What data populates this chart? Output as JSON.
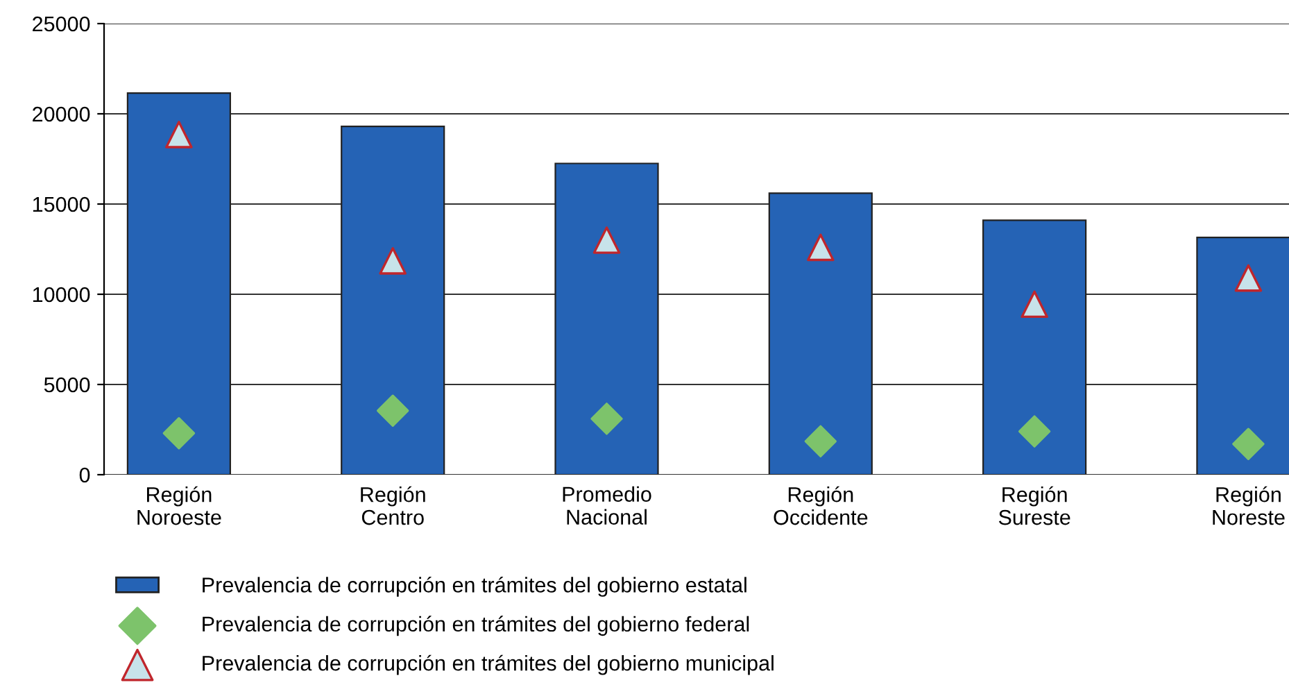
{
  "chart_data": {
    "type": "bar",
    "categories": [
      "Región\nNoroeste",
      "Región\nCentro",
      "Promedio\nNacional",
      "Región\nOccidente",
      "Región\nSureste",
      "Región\nNoreste"
    ],
    "series": [
      {
        "name": "Prevalencia de corrupción en trámites del gobierno estatal",
        "color": "#2563b5",
        "values": [
          21150,
          19300,
          17250,
          15600,
          14100,
          13150
        ]
      },
      {
        "name": "Prevalencia de corrupción en trámites del gobierno federal",
        "type": "scatter",
        "marker": "diamond",
        "color": "#7dc36b",
        "values": [
          2300,
          3550,
          3100,
          1850,
          2400,
          1700
        ]
      },
      {
        "name": "Prevalencia de corrupción en trámites del gobierno municipal",
        "type": "scatter",
        "marker": "triangle",
        "color": "#c7e3ea",
        "values": [
          18850,
          11850,
          13000,
          12600,
          9450,
          10900
        ]
      }
    ],
    "ylim": [
      0,
      25000
    ],
    "yticks": [
      0,
      5000,
      10000,
      15000,
      20000,
      25000
    ],
    "grid": "y",
    "legend": "bottom"
  }
}
